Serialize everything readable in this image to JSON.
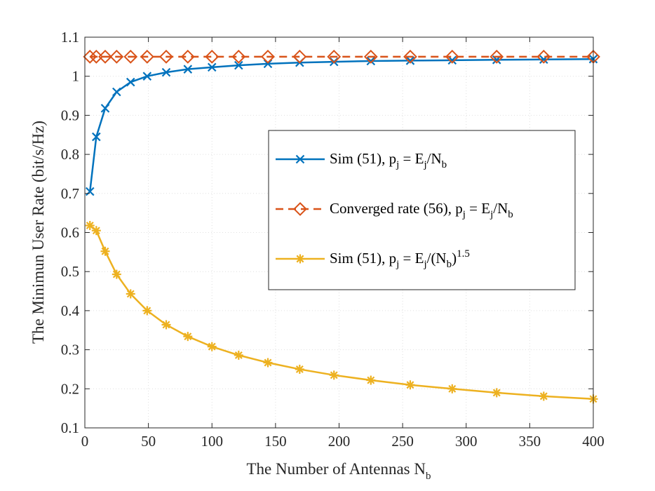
{
  "chart_data": {
    "type": "line",
    "title": "",
    "xlabel": "The Number of Antennas N",
    "xlabel_sub": "b",
    "ylabel": "The Minimun User Rate (bit/s/Hz)",
    "xlim": [
      0,
      400
    ],
    "ylim": [
      0.1,
      1.1
    ],
    "xticks": [
      0,
      50,
      100,
      150,
      200,
      250,
      300,
      350,
      400
    ],
    "yticks": [
      0.1,
      0.2,
      0.3,
      0.4,
      0.5,
      0.6,
      0.7,
      0.8,
      0.9,
      1,
      1.1
    ],
    "ytick_labels": [
      "0.1",
      "0.2",
      "0.3",
      "0.4",
      "0.5",
      "0.6",
      "0.7",
      "0.8",
      "0.9",
      "1",
      "1.1"
    ],
    "grid": true,
    "legend_position": "center-right",
    "x": [
      4,
      9,
      16,
      25,
      36,
      49,
      64,
      81,
      100,
      121,
      144,
      169,
      196,
      225,
      256,
      289,
      324,
      361,
      400
    ],
    "series": [
      {
        "name": "sim-equal",
        "legend_label": {
          "main": "Sim (51), p",
          "s1": "j",
          "mid": " = E",
          "s2": "j",
          "tail": "/N",
          "s3": "b",
          "sup": ""
        },
        "color": "#0072BD",
        "marker": "x",
        "dashed": false,
        "values": [
          0.705,
          0.845,
          0.918,
          0.96,
          0.985,
          1.0,
          1.01,
          1.018,
          1.023,
          1.028,
          1.032,
          1.035,
          1.037,
          1.039,
          1.04,
          1.041,
          1.042,
          1.043,
          1.044
        ]
      },
      {
        "name": "converged",
        "legend_label": {
          "main": "Converged rate (56), p",
          "s1": "j",
          "mid": " = E",
          "s2": "j",
          "tail": "/N",
          "s3": "b",
          "sup": ""
        },
        "color": "#D95319",
        "marker": "diamond",
        "dashed": true,
        "values": [
          1.05,
          1.05,
          1.05,
          1.05,
          1.05,
          1.05,
          1.05,
          1.05,
          1.05,
          1.05,
          1.05,
          1.05,
          1.05,
          1.05,
          1.05,
          1.05,
          1.05,
          1.05,
          1.05
        ]
      },
      {
        "name": "sim-power",
        "legend_label": {
          "main": "Sim (51), p",
          "s1": "j",
          "mid": " = E",
          "s2": "j",
          "tail": "/(N",
          "s3": "b",
          "sup": "1.5",
          "close": ")"
        },
        "color": "#EDB120",
        "marker": "asterisk",
        "dashed": false,
        "values": [
          0.618,
          0.605,
          0.552,
          0.493,
          0.443,
          0.4,
          0.364,
          0.334,
          0.308,
          0.286,
          0.267,
          0.25,
          0.235,
          0.222,
          0.21,
          0.2,
          0.19,
          0.181,
          0.174
        ]
      }
    ]
  }
}
